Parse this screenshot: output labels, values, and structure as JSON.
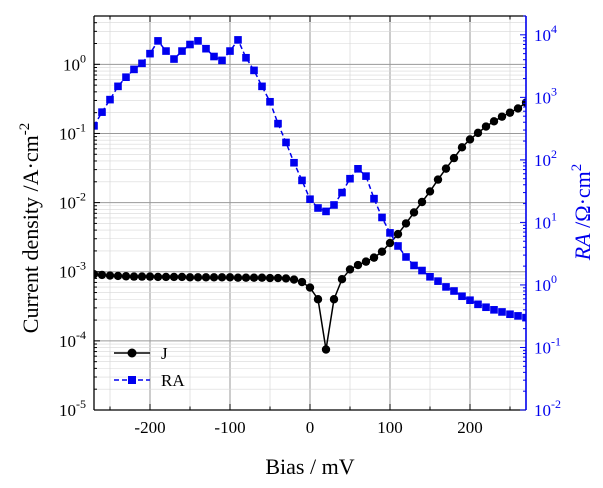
{
  "chart_data": {
    "type": "line",
    "xlabel": "Bias / mV",
    "ylabel_left": "Current density /A·cm",
    "ylabel_left_sup": "-2",
    "ylabel_right_italic": "RA",
    "ylabel_right": " /Ω·cm",
    "ylabel_right_sup": "2",
    "xlim": [
      -270,
      270
    ],
    "x_ticks": [
      -200,
      -100,
      0,
      100,
      200
    ],
    "x_tick_labels": [
      "-200",
      "-100",
      "0",
      "100",
      "200"
    ],
    "y_left": {
      "scale": "log",
      "lim": [
        1e-05,
        5
      ],
      "ticks": [
        {
          "base": "10",
          "exp": "-5",
          "value": 1e-05
        },
        {
          "base": "10",
          "exp": "-4",
          "value": 0.0001
        },
        {
          "base": "10",
          "exp": "-3",
          "value": 0.001
        },
        {
          "base": "10",
          "exp": "-2",
          "value": 0.01
        },
        {
          "base": "10",
          "exp": "-1",
          "value": 0.1
        },
        {
          "base": "10",
          "exp": "0",
          "value": 1
        }
      ]
    },
    "y_right": {
      "scale": "log",
      "lim": [
        0.01,
        20000
      ],
      "ticks": [
        {
          "base": "10",
          "exp": "-2",
          "value": 0.01
        },
        {
          "base": "10",
          "exp": "-1",
          "value": 0.1
        },
        {
          "base": "10",
          "exp": "0",
          "value": 1
        },
        {
          "base": "10",
          "exp": "1",
          "value": 10
        },
        {
          "base": "10",
          "exp": "2",
          "value": 100
        },
        {
          "base": "10",
          "exp": "3",
          "value": 1000
        },
        {
          "base": "10",
          "exp": "4",
          "value": 10000
        }
      ]
    },
    "grid": true,
    "legend_position": "bottom-left",
    "series": [
      {
        "name": "J",
        "axis": "left",
        "color": "#000000",
        "marker": "circle",
        "x": [
          -270,
          -260,
          -250,
          -240,
          -230,
          -220,
          -210,
          -200,
          -190,
          -180,
          -170,
          -160,
          -150,
          -140,
          -130,
          -120,
          -110,
          -100,
          -90,
          -80,
          -70,
          -60,
          -50,
          -40,
          -30,
          -20,
          -10,
          0,
          10,
          20,
          30,
          40,
          50,
          60,
          70,
          80,
          90,
          100,
          110,
          120,
          130,
          140,
          150,
          160,
          170,
          180,
          190,
          200,
          210,
          220,
          230,
          240,
          250,
          260,
          270
        ],
        "y": [
          0.00092,
          0.0009,
          0.00088,
          0.00087,
          0.00086,
          0.00085,
          0.00085,
          0.00085,
          0.00084,
          0.00084,
          0.00084,
          0.00084,
          0.00083,
          0.00083,
          0.00083,
          0.00083,
          0.00083,
          0.00083,
          0.00082,
          0.00082,
          0.00082,
          0.00082,
          0.00081,
          0.00081,
          0.0008,
          0.00077,
          0.00071,
          0.00059,
          0.0004,
          7.5e-05,
          0.0004,
          0.00078,
          0.00108,
          0.00125,
          0.0014,
          0.0016,
          0.00195,
          0.0026,
          0.0035,
          0.005,
          0.0072,
          0.0102,
          0.0145,
          0.0215,
          0.031,
          0.044,
          0.063,
          0.082,
          0.102,
          0.126,
          0.15,
          0.175,
          0.2,
          0.23,
          0.28
        ]
      },
      {
        "name": "RA",
        "axis": "right",
        "color": "#0000ee",
        "marker": "square",
        "x": [
          -270,
          -260,
          -250,
          -240,
          -230,
          -220,
          -210,
          -200,
          -190,
          -180,
          -170,
          -160,
          -150,
          -140,
          -130,
          -120,
          -110,
          -100,
          -90,
          -80,
          -70,
          -60,
          -50,
          -40,
          -30,
          -20,
          -10,
          0,
          10,
          20,
          30,
          40,
          50,
          60,
          70,
          80,
          90,
          100,
          110,
          120,
          130,
          140,
          150,
          160,
          170,
          180,
          190,
          200,
          210,
          220,
          230,
          240,
          250,
          260,
          270
        ],
        "y": [
          350,
          580,
          920,
          1500,
          2100,
          2800,
          3500,
          5000,
          8000,
          5500,
          4100,
          5500,
          7000,
          8000,
          6000,
          4500,
          3900,
          5500,
          8300,
          4300,
          2700,
          1500,
          850,
          380,
          190,
          90,
          47,
          23.5,
          17,
          15,
          19,
          30,
          50,
          72,
          55,
          24,
          12,
          6.8,
          4.2,
          2.8,
          2.05,
          1.7,
          1.35,
          1.15,
          0.93,
          0.8,
          0.66,
          0.57,
          0.49,
          0.44,
          0.4,
          0.37,
          0.34,
          0.32,
          0.3
        ]
      }
    ]
  }
}
